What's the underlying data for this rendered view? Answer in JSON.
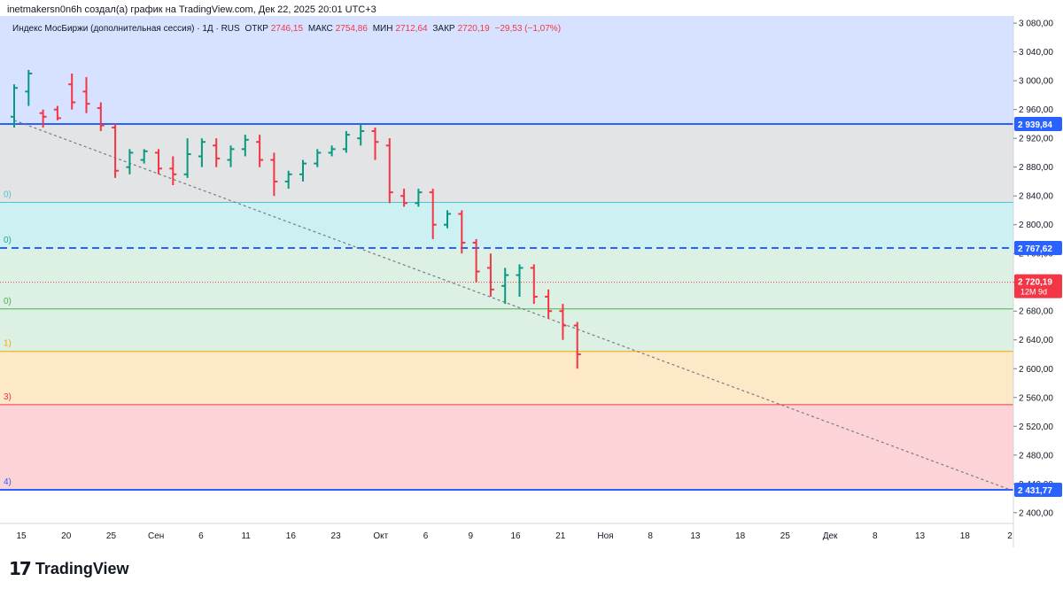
{
  "header": {
    "author_text": "inetmakersn0n6h создал(а) график на TradingView.com, Дек 22, 2025 20:01 UTC+3"
  },
  "legend": {
    "title": "Индекс МосБиржи (дополнительная сессия) · 1Д · RUS",
    "open_label": "ОТКР",
    "open_value": "2746,15",
    "high_label": "МАКС",
    "high_value": "2754,86",
    "low_label": "МИН",
    "low_value": "2712,64",
    "close_label": "ЗАКР",
    "close_value": "2720,19",
    "change_value": "−29,53 (−1,07%)"
  },
  "footer": {
    "logo_mark": "17",
    "logo_text": "TradingView"
  },
  "colors": {
    "up": "#089981",
    "down": "#f23645",
    "band_top": "#d6e2ff",
    "band_grey": "#e3e4e6",
    "band_cyan": "#cdf0f3",
    "band_green": "#dcf0e4",
    "band_orange": "#fde9c8",
    "band_red": "#fcd4d8",
    "line_blue": "#2962ff"
  },
  "chart_data": {
    "type": "ohlc",
    "y_range": [
      2385,
      3090
    ],
    "y_ticks": [
      2400,
      2440,
      2480,
      2520,
      2560,
      2600,
      2640,
      2680,
      2720,
      2760,
      2800,
      2840,
      2880,
      2920,
      2960,
      3000,
      3040,
      3080
    ],
    "y_tick_labels": [
      "2 400,00",
      "2 440,00",
      "2 480,00",
      "2 520,00",
      "2 560,00",
      "2 600,00",
      "2 640,00",
      "2 680,00",
      "2 720,00",
      "2 760,00",
      "2 800,00",
      "2 840,00",
      "2 880,00",
      "2 920,00",
      "2 960,00",
      "3 000,00",
      "3 040,00",
      "3 080,00"
    ],
    "x_labels": [
      {
        "label": "15",
        "i": 0
      },
      {
        "label": "20",
        "i": 3
      },
      {
        "label": "25",
        "i": 6
      },
      {
        "label": "Сен",
        "i": 10
      },
      {
        "label": "6",
        "i": 13
      },
      {
        "label": "11",
        "i": 16
      },
      {
        "label": "16",
        "i": 19
      },
      {
        "label": "23",
        "i": 22
      },
      {
        "label": "Окт",
        "i": 26
      },
      {
        "label": "6",
        "i": 29
      },
      {
        "label": "9",
        "i": 32
      },
      {
        "label": "16",
        "i": 35
      },
      {
        "label": "21",
        "i": 38
      },
      {
        "label": "Ноя",
        "i": 42
      },
      {
        "label": "8",
        "i": 45
      },
      {
        "label": "13",
        "i": 48
      },
      {
        "label": "18",
        "i": 51
      },
      {
        "label": "25",
        "i": 54
      },
      {
        "label": "Дек",
        "i": 57
      },
      {
        "label": "8",
        "i": 60
      },
      {
        "label": "13",
        "i": 63
      },
      {
        "label": "18",
        "i": 66
      },
      {
        "label": "2",
        "i": 69
      }
    ],
    "fib_levels": [
      {
        "price": 2939.84,
        "label": "2 939,84",
        "left": "",
        "axis_color": "#2962ff"
      },
      {
        "price": 2831.0,
        "label": "",
        "left": "0)",
        "axis_color": ""
      },
      {
        "price": 2767.62,
        "label": "2 767,62",
        "left": "0)",
        "axis_color": "#2962ff"
      },
      {
        "price": 2683.0,
        "label": "",
        "left": "0)",
        "axis_color": ""
      },
      {
        "price": 2624.0,
        "label": "",
        "left": "1)",
        "axis_color": ""
      },
      {
        "price": 2550.0,
        "label": "",
        "left": "3)",
        "axis_color": ""
      },
      {
        "price": 2431.77,
        "label": "2 431,77",
        "left": "4)",
        "axis_color": "#2962ff"
      }
    ],
    "current_price": {
      "label": "2 720,19",
      "sublabel": "12M 9d",
      "price": 2720.19
    },
    "trendline": [
      [
        0,
        2945
      ],
      [
        69,
        2432
      ]
    ],
    "bars": [
      [
        2950,
        2995,
        2935,
        2990
      ],
      [
        2985,
        3015,
        2965,
        3010
      ],
      [
        2955,
        2960,
        2935,
        2950
      ],
      [
        2960,
        2965,
        2945,
        2948
      ],
      [
        2995,
        3010,
        2960,
        2970
      ],
      [
        2985,
        3005,
        2955,
        2968
      ],
      [
        2962,
        2970,
        2930,
        2938
      ],
      [
        2935,
        2940,
        2865,
        2875
      ],
      [
        2880,
        2905,
        2870,
        2900
      ],
      [
        2890,
        2905,
        2885,
        2902
      ],
      [
        2900,
        2905,
        2870,
        2878
      ],
      [
        2878,
        2895,
        2855,
        2870
      ],
      [
        2870,
        2920,
        2865,
        2898
      ],
      [
        2895,
        2920,
        2880,
        2915
      ],
      [
        2910,
        2920,
        2880,
        2892
      ],
      [
        2890,
        2910,
        2880,
        2905
      ],
      [
        2905,
        2925,
        2895,
        2918
      ],
      [
        2915,
        2925,
        2880,
        2890
      ],
      [
        2890,
        2900,
        2840,
        2860
      ],
      [
        2860,
        2875,
        2850,
        2870
      ],
      [
        2870,
        2890,
        2860,
        2885
      ],
      [
        2885,
        2905,
        2880,
        2900
      ],
      [
        2900,
        2910,
        2895,
        2905
      ],
      [
        2905,
        2930,
        2900,
        2925
      ],
      [
        2920,
        2940,
        2910,
        2930
      ],
      [
        2930,
        2935,
        2890,
        2915
      ],
      [
        2910,
        2920,
        2830,
        2845
      ],
      [
        2840,
        2850,
        2825,
        2830
      ],
      [
        2830,
        2850,
        2825,
        2845
      ],
      [
        2845,
        2850,
        2780,
        2800
      ],
      [
        2800,
        2820,
        2795,
        2815
      ],
      [
        2815,
        2820,
        2760,
        2775
      ],
      [
        2775,
        2780,
        2720,
        2735
      ],
      [
        2740,
        2760,
        2700,
        2710
      ],
      [
        2715,
        2740,
        2690,
        2730
      ],
      [
        2730,
        2745,
        2700,
        2740
      ],
      [
        2740,
        2745,
        2690,
        2700
      ],
      [
        2700,
        2710,
        2670,
        2680
      ],
      [
        2680,
        2690,
        2640,
        2660
      ],
      [
        2660,
        2665,
        2600,
        2620
      ]
    ]
  }
}
